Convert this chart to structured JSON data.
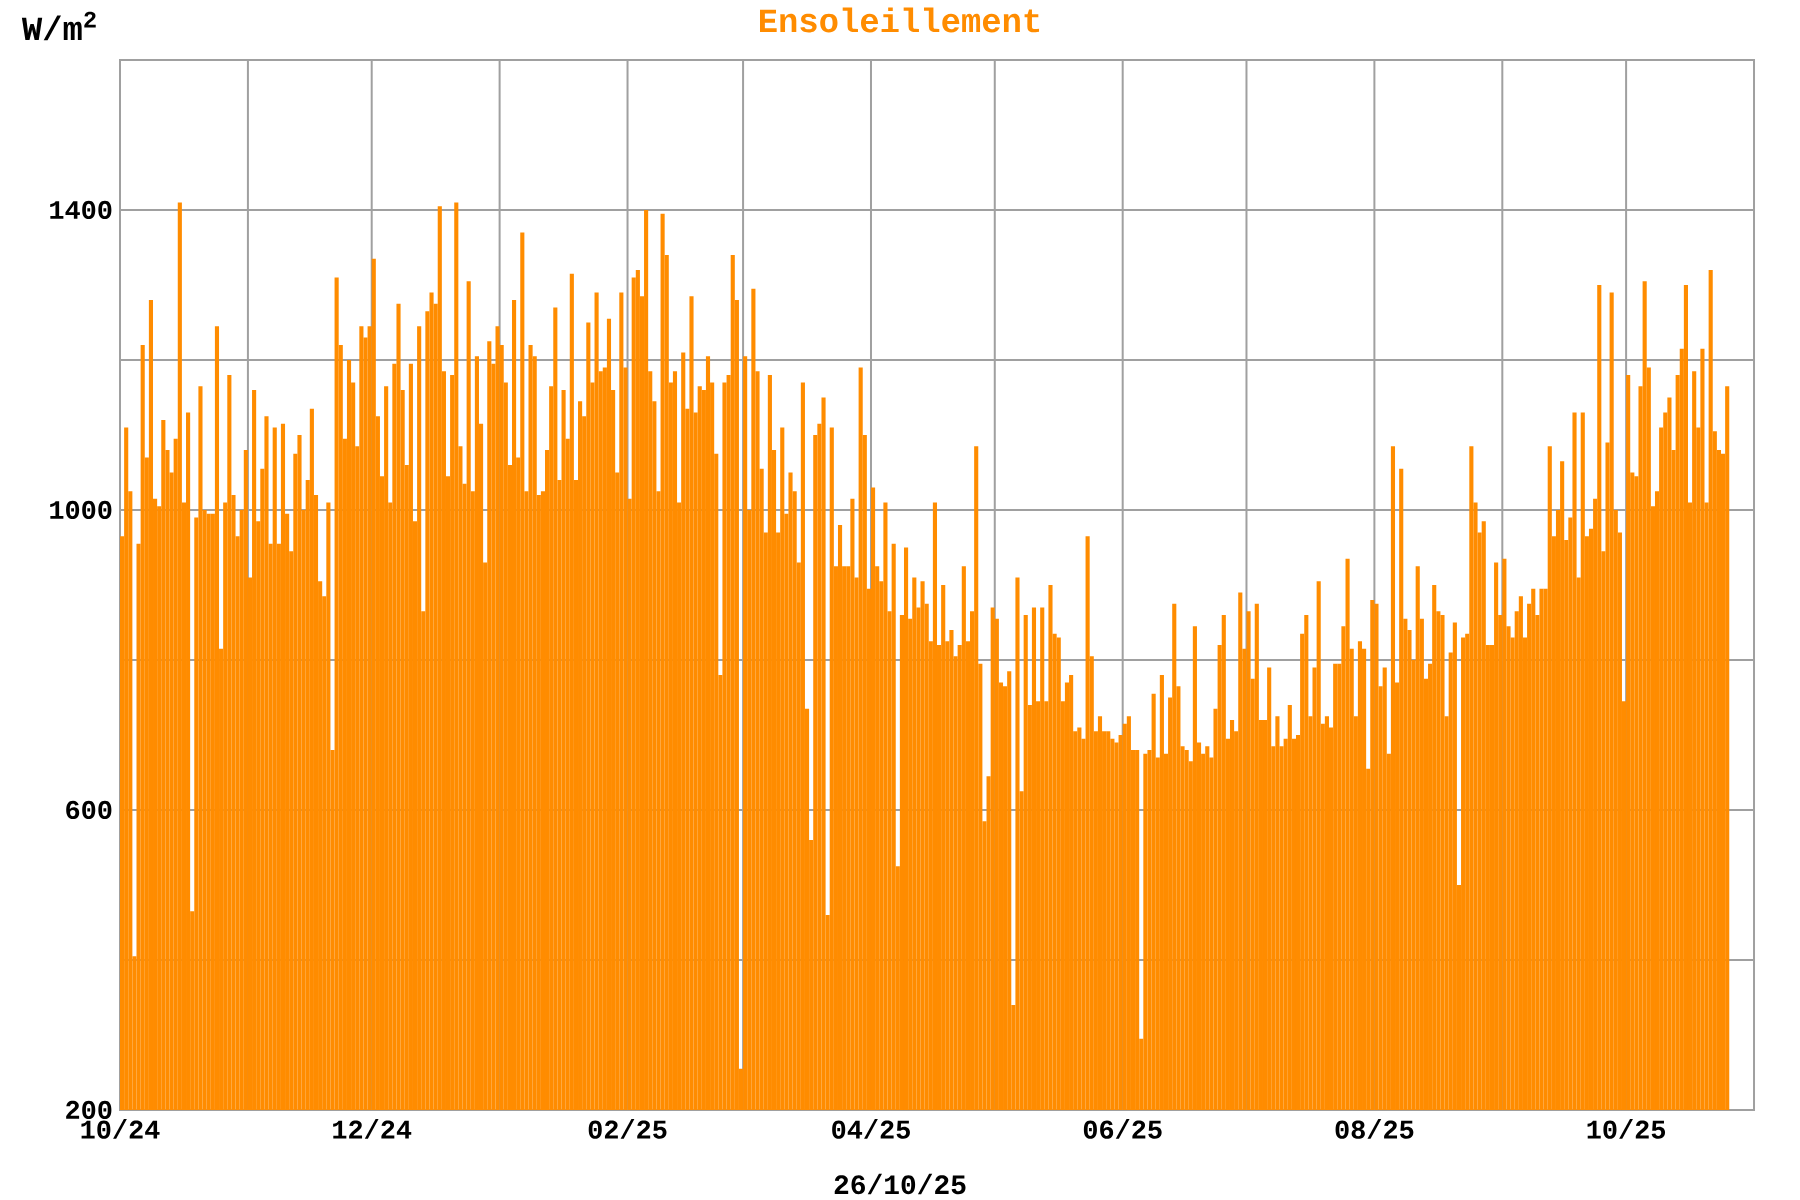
{
  "chart_data": {
    "type": "bar",
    "title": "Ensoleillement",
    "ylabel": "W/m$^{2}$",
    "xlabel": "26/10/25",
    "x": [
      "2024-10-01",
      "2024-10-02",
      "2024-10-03",
      "2024-10-04",
      "2024-10-05",
      "2024-10-06",
      "2024-10-07",
      "2024-10-08",
      "2024-10-09",
      "2024-10-10",
      "2024-10-11",
      "2024-10-12",
      "2024-10-13",
      "2024-10-14",
      "2024-10-15",
      "2024-10-16",
      "2024-10-17",
      "2024-10-18",
      "2024-10-19",
      "2024-10-20",
      "2024-10-21",
      "2024-10-22",
      "2024-10-23",
      "2024-10-24",
      "2024-10-25",
      "2024-10-26",
      "2024-10-27",
      "2024-10-28",
      "2024-10-29",
      "2024-10-30",
      "2024-10-31",
      "2024-11-01",
      "2024-11-02",
      "2024-11-03",
      "2024-11-04",
      "2024-11-05",
      "2024-11-06",
      "2024-11-07",
      "2024-11-08",
      "2024-11-09",
      "2024-11-10",
      "2024-11-11",
      "2024-11-12",
      "2024-11-13",
      "2024-11-14",
      "2024-11-15",
      "2024-11-16",
      "2024-11-17",
      "2024-11-18",
      "2024-11-19",
      "2024-11-20",
      "2024-11-21",
      "2024-11-22",
      "2024-11-23",
      "2024-11-24",
      "2024-11-25",
      "2024-11-26",
      "2024-11-27",
      "2024-11-28",
      "2024-11-29",
      "2024-11-30",
      "2024-12-01",
      "2024-12-02",
      "2024-12-03",
      "2024-12-04",
      "2024-12-05",
      "2024-12-06",
      "2024-12-07",
      "2024-12-08",
      "2024-12-09",
      "2024-12-10",
      "2024-12-11",
      "2024-12-12",
      "2024-12-13",
      "2024-12-14",
      "2024-12-15",
      "2024-12-16",
      "2024-12-17",
      "2024-12-18",
      "2024-12-19",
      "2024-12-20",
      "2024-12-21",
      "2024-12-22",
      "2024-12-23",
      "2024-12-24",
      "2024-12-25",
      "2024-12-26",
      "2024-12-27",
      "2024-12-28",
      "2024-12-29",
      "2024-12-30",
      "2024-12-31",
      "2025-01-01",
      "2025-01-02",
      "2025-01-03",
      "2025-01-04",
      "2025-01-05",
      "2025-01-06",
      "2025-01-07",
      "2025-01-08",
      "2025-01-09",
      "2025-01-10",
      "2025-01-11",
      "2025-01-12",
      "2025-01-13",
      "2025-01-14",
      "2025-01-15",
      "2025-01-16",
      "2025-01-17",
      "2025-01-18",
      "2025-01-19",
      "2025-01-20",
      "2025-01-21",
      "2025-01-22",
      "2025-01-23",
      "2025-01-24",
      "2025-01-25",
      "2025-01-26",
      "2025-01-27",
      "2025-01-28",
      "2025-01-29",
      "2025-01-30",
      "2025-01-31",
      "2025-02-01",
      "2025-02-02",
      "2025-02-03",
      "2025-02-04",
      "2025-02-05",
      "2025-02-06",
      "2025-02-07",
      "2025-02-08",
      "2025-02-09",
      "2025-02-10",
      "2025-02-11",
      "2025-02-12",
      "2025-02-13",
      "2025-02-14",
      "2025-02-15",
      "2025-02-16",
      "2025-02-17",
      "2025-02-18",
      "2025-02-19",
      "2025-02-20",
      "2025-02-21",
      "2025-02-22",
      "2025-02-23",
      "2025-02-24",
      "2025-02-25",
      "2025-02-26",
      "2025-02-27",
      "2025-02-28",
      "2025-03-01",
      "2025-03-02",
      "2025-03-03",
      "2025-03-04",
      "2025-03-05",
      "2025-03-06",
      "2025-03-07",
      "2025-03-08",
      "2025-03-09",
      "2025-03-10",
      "2025-03-11",
      "2025-03-12",
      "2025-03-13",
      "2025-03-14",
      "2025-03-15",
      "2025-03-16",
      "2025-03-17",
      "2025-03-18",
      "2025-03-19",
      "2025-03-20",
      "2025-03-21",
      "2025-03-22",
      "2025-03-23",
      "2025-03-24",
      "2025-03-25",
      "2025-03-26",
      "2025-03-27",
      "2025-03-28",
      "2025-03-29",
      "2025-03-30",
      "2025-03-31",
      "2025-04-01",
      "2025-04-02",
      "2025-04-03",
      "2025-04-04",
      "2025-04-05",
      "2025-04-06",
      "2025-04-07",
      "2025-04-08",
      "2025-04-09",
      "2025-04-10",
      "2025-04-11",
      "2025-04-12",
      "2025-04-13",
      "2025-04-14",
      "2025-04-15",
      "2025-04-16",
      "2025-04-17",
      "2025-04-18",
      "2025-04-19",
      "2025-04-20",
      "2025-04-21",
      "2025-04-22",
      "2025-04-23",
      "2025-04-24",
      "2025-04-25",
      "2025-04-26",
      "2025-04-27",
      "2025-04-28",
      "2025-04-29",
      "2025-04-30",
      "2025-05-01",
      "2025-05-02",
      "2025-05-03",
      "2025-05-04",
      "2025-05-05",
      "2025-05-06",
      "2025-05-07",
      "2025-05-08",
      "2025-05-09",
      "2025-05-10",
      "2025-05-11",
      "2025-05-12",
      "2025-05-13",
      "2025-05-14",
      "2025-05-15",
      "2025-05-16",
      "2025-05-17",
      "2025-05-18",
      "2025-05-19",
      "2025-05-20",
      "2025-05-21",
      "2025-05-22",
      "2025-05-23",
      "2025-05-24",
      "2025-05-25",
      "2025-05-26",
      "2025-05-27",
      "2025-05-28",
      "2025-05-29",
      "2025-05-30",
      "2025-05-31",
      "2025-06-01",
      "2025-06-02",
      "2025-06-03",
      "2025-06-04",
      "2025-06-05",
      "2025-06-06",
      "2025-06-07",
      "2025-06-08",
      "2025-06-09",
      "2025-06-10",
      "2025-06-11",
      "2025-06-12",
      "2025-06-13",
      "2025-06-14",
      "2025-06-15",
      "2025-06-16",
      "2025-06-17",
      "2025-06-18",
      "2025-06-19",
      "2025-06-20",
      "2025-06-21",
      "2025-06-22",
      "2025-06-23",
      "2025-06-24",
      "2025-06-25",
      "2025-06-26",
      "2025-06-27",
      "2025-06-28",
      "2025-06-29",
      "2025-06-30",
      "2025-07-01",
      "2025-07-02",
      "2025-07-03",
      "2025-07-04",
      "2025-07-05",
      "2025-07-06",
      "2025-07-07",
      "2025-07-08",
      "2025-07-09",
      "2025-07-10",
      "2025-07-11",
      "2025-07-12",
      "2025-07-13",
      "2025-07-14",
      "2025-07-15",
      "2025-07-16",
      "2025-07-17",
      "2025-07-18",
      "2025-07-19",
      "2025-07-20",
      "2025-07-21",
      "2025-07-22",
      "2025-07-23",
      "2025-07-24",
      "2025-07-25",
      "2025-07-26",
      "2025-07-27",
      "2025-07-28",
      "2025-07-29",
      "2025-07-30",
      "2025-07-31",
      "2025-08-01",
      "2025-08-02",
      "2025-08-03",
      "2025-08-04",
      "2025-08-05",
      "2025-08-06",
      "2025-08-07",
      "2025-08-08",
      "2025-08-09",
      "2025-08-10",
      "2025-08-11",
      "2025-08-12",
      "2025-08-13",
      "2025-08-14",
      "2025-08-15",
      "2025-08-16",
      "2025-08-17",
      "2025-08-18",
      "2025-08-19",
      "2025-08-20",
      "2025-08-21",
      "2025-08-22",
      "2025-08-23",
      "2025-08-24",
      "2025-08-25",
      "2025-08-26",
      "2025-08-27",
      "2025-08-28",
      "2025-08-29",
      "2025-08-30",
      "2025-08-31",
      "2025-09-01",
      "2025-09-02",
      "2025-09-03",
      "2025-09-04",
      "2025-09-05",
      "2025-09-06",
      "2025-09-07",
      "2025-09-08",
      "2025-09-09",
      "2025-09-10",
      "2025-09-11",
      "2025-09-12",
      "2025-09-13",
      "2025-09-14",
      "2025-09-15",
      "2025-09-16",
      "2025-09-17",
      "2025-09-18",
      "2025-09-19",
      "2025-09-20",
      "2025-09-21",
      "2025-09-22",
      "2025-09-23",
      "2025-09-24",
      "2025-09-25",
      "2025-09-26",
      "2025-09-27",
      "2025-09-28",
      "2025-09-29",
      "2025-09-30",
      "2025-10-01",
      "2025-10-02",
      "2025-10-03",
      "2025-10-04",
      "2025-10-05",
      "2025-10-06",
      "2025-10-07",
      "2025-10-08",
      "2025-10-09",
      "2025-10-10",
      "2025-10-11",
      "2025-10-12",
      "2025-10-13",
      "2025-10-14",
      "2025-10-15",
      "2025-10-16",
      "2025-10-17",
      "2025-10-18",
      "2025-10-19",
      "2025-10-20",
      "2025-10-21",
      "2025-10-22",
      "2025-10-23",
      "2025-10-24",
      "2025-10-25"
    ],
    "values": [
      965,
      1110,
      1025,
      405,
      955,
      1220,
      1070,
      1280,
      1015,
      1005,
      1120,
      1080,
      1050,
      1095,
      1410,
      1010,
      1130,
      465,
      990,
      1165,
      1000,
      995,
      995,
      1245,
      815,
      1010,
      1180,
      1020,
      965,
      1000,
      1080,
      910,
      1160,
      985,
      1055,
      1125,
      955,
      1110,
      955,
      1115,
      995,
      945,
      1075,
      1100,
      1000,
      1040,
      1135,
      1020,
      905,
      885,
      1010,
      680,
      1310,
      1220,
      1095,
      1200,
      1170,
      1085,
      1245,
      1230,
      1245,
      1335,
      1125,
      1045,
      1165,
      1010,
      1195,
      1275,
      1160,
      1060,
      1195,
      985,
      1245,
      865,
      1265,
      1290,
      1275,
      1405,
      1185,
      1045,
      1180,
      1410,
      1085,
      1035,
      1305,
      1025,
      1205,
      1115,
      930,
      1225,
      1195,
      1245,
      1220,
      1170,
      1060,
      1280,
      1070,
      1370,
      1025,
      1220,
      1205,
      1020,
      1025,
      1080,
      1165,
      1270,
      1040,
      1160,
      1095,
      1315,
      1040,
      1145,
      1125,
      1250,
      1170,
      1290,
      1185,
      1190,
      1255,
      1160,
      1050,
      1290,
      1190,
      1015,
      1310,
      1320,
      1285,
      1400,
      1185,
      1145,
      1025,
      1395,
      1340,
      1170,
      1185,
      1010,
      1210,
      1135,
      1285,
      1130,
      1165,
      1160,
      1205,
      1170,
      1075,
      780,
      1170,
      1180,
      1340,
      1280,
      255,
      1205,
      1000,
      1295,
      1185,
      1055,
      970,
      1180,
      1080,
      970,
      1110,
      995,
      1050,
      1025,
      930,
      1170,
      735,
      560,
      1100,
      1115,
      1150,
      460,
      1110,
      925,
      980,
      925,
      925,
      1015,
      910,
      1190,
      1100,
      895,
      1030,
      925,
      905,
      1010,
      865,
      955,
      525,
      860,
      950,
      855,
      910,
      870,
      905,
      875,
      825,
      1010,
      820,
      900,
      825,
      840,
      805,
      820,
      925,
      825,
      865,
      1085,
      795,
      585,
      645,
      870,
      855,
      770,
      765,
      785,
      340,
      910,
      625,
      860,
      740,
      870,
      745,
      870,
      745,
      900,
      835,
      830,
      745,
      770,
      780,
      705,
      710,
      695,
      965,
      805,
      705,
      725,
      705,
      705,
      695,
      690,
      700,
      715,
      725,
      680,
      680,
      295,
      675,
      680,
      755,
      670,
      780,
      675,
      750,
      875,
      765,
      685,
      680,
      665,
      845,
      690,
      675,
      685,
      670,
      735,
      820,
      860,
      695,
      720,
      705,
      890,
      815,
      865,
      775,
      875,
      720,
      720,
      790,
      685,
      725,
      685,
      695,
      740,
      695,
      700,
      835,
      860,
      725,
      790,
      905,
      715,
      725,
      710,
      795,
      795,
      845,
      935,
      815,
      725,
      825,
      815,
      655,
      880,
      875,
      765,
      790,
      675,
      1085,
      770,
      1055,
      855,
      840,
      800,
      925,
      855,
      775,
      795,
      900,
      865,
      860,
      725,
      810,
      850,
      500,
      830,
      835,
      1085,
      1010,
      970,
      985,
      820,
      820,
      930,
      860,
      935,
      845,
      830,
      865,
      885,
      830,
      875,
      895,
      860,
      895,
      895,
      1085,
      965,
      1000,
      1065,
      960,
      990,
      1130,
      910,
      1130,
      965,
      975,
      1015,
      1300,
      945,
      1090,
      1290,
      1000,
      970,
      745,
      1180,
      1050,
      1045,
      1165,
      1305,
      1190,
      1005,
      1025,
      1110,
      1130,
      1150,
      1080,
      1180,
      1215,
      1300,
      1010,
      1185,
      1110,
      1215,
      1010,
      1320,
      1105,
      1080,
      1075,
      1165
    ],
    "color": "#ff8c00",
    "xlim": [
      "2024-10-01",
      "2025-11-01"
    ],
    "xticks": [
      {
        "value": "2024-10-01",
        "label": "10/24"
      },
      {
        "value": "2024-11-01",
        "label": null
      },
      {
        "value": "2024-12-01",
        "label": "12/24"
      },
      {
        "value": "2025-01-01",
        "label": null
      },
      {
        "value": "2025-02-01",
        "label": "02/25"
      },
      {
        "value": "2025-03-01",
        "label": null
      },
      {
        "value": "2025-04-01",
        "label": "04/25"
      },
      {
        "value": "2025-05-01",
        "label": null
      },
      {
        "value": "2025-06-01",
        "label": "06/25"
      },
      {
        "value": "2025-07-01",
        "label": null
      },
      {
        "value": "2025-08-01",
        "label": "08/25"
      },
      {
        "value": "2025-09-01",
        "label": null
      },
      {
        "value": "2025-10-01",
        "label": "10/25"
      }
    ],
    "ylim": [
      200,
      1600
    ],
    "yticks": [
      200,
      {
        "value": 400,
        "label": null
      },
      600,
      {
        "value": 800,
        "label": null
      },
      1000,
      {
        "value": 1200,
        "label": null
      },
      1400
    ],
    "grid": true
  }
}
